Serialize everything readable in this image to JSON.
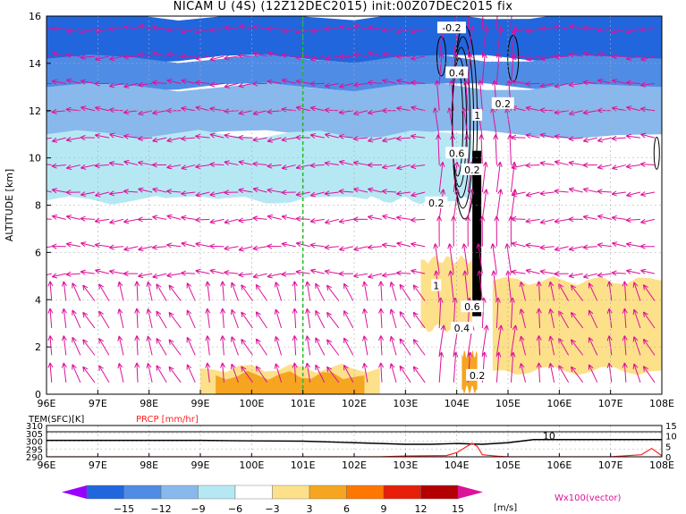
{
  "title": "NICAM U (4S) (12Z12DEC2015) init:00Z07DEC2015 fix",
  "chart_data": [
    {
      "type": "heatmap",
      "ylabel": "ALTITUDE [km]",
      "x_ticks": [
        "96E",
        "97E",
        "98E",
        "99E",
        "100E",
        "101E",
        "102E",
        "103E",
        "104E",
        "105E",
        "106E",
        "107E",
        "108E"
      ],
      "x_range": [
        96,
        108
      ],
      "y_ticks": [
        "0",
        "2",
        "4",
        "6",
        "8",
        "10",
        "12",
        "14",
        "16"
      ],
      "y_range": [
        0,
        16
      ],
      "grid": true,
      "marker_line_lon": 101,
      "contour_labels": [
        "-0.2",
        "0.4",
        "0.2",
        "1",
        "0.6",
        "0.2",
        "0.2",
        "1",
        "0.6",
        "0.4",
        "0.2"
      ],
      "field_regions": [
        {
          "lon": [
            96,
            108
          ],
          "alt": [
            14.2,
            16
          ],
          "value": -15
        },
        {
          "lon": [
            96,
            108
          ],
          "alt": [
            13.0,
            14.2
          ],
          "value": -12
        },
        {
          "lon": [
            96,
            108
          ],
          "alt": [
            11.0,
            13.0
          ],
          "value": -9
        },
        {
          "lon": [
            96,
            104.3
          ],
          "alt": [
            8.2,
            11.0
          ],
          "value": -6
        },
        {
          "lon": [
            96,
            102.0
          ],
          "alt": [
            5.0,
            8.2
          ],
          "value": -3
        },
        {
          "lon": [
            102.0,
            104.3
          ],
          "alt": [
            6.5,
            8.2
          ],
          "value": -3
        },
        {
          "lon": [
            103.3,
            104.3
          ],
          "alt": [
            2.8,
            5.7
          ],
          "value": 3
        },
        {
          "lon": [
            104.7,
            108
          ],
          "alt": [
            1.0,
            4.8
          ],
          "value": 3
        },
        {
          "lon": [
            99.0,
            102.5
          ],
          "alt": [
            0,
            1.1
          ],
          "value": 3
        },
        {
          "lon": [
            99.3,
            102.2
          ],
          "alt": [
            0,
            0.8
          ],
          "value": 6
        },
        {
          "lon": [
            104.1,
            104.4
          ],
          "alt": [
            0.2,
            1.7
          ],
          "value": 6
        }
      ],
      "convective_core": {
        "lon": [
          104.2,
          104.6
        ],
        "alt": [
          0,
          16
        ]
      }
    },
    {
      "type": "line",
      "legend": [
        "TEM(SFC)[K]",
        "PRCP [mm/hr]"
      ],
      "series_colors": [
        "#000000",
        "#ff2020"
      ],
      "x_ticks": [
        "96E",
        "97E",
        "98E",
        "99E",
        "100E",
        "101E",
        "102E",
        "103E",
        "104E",
        "105E",
        "106E",
        "107E",
        "108E"
      ],
      "y_left_ticks": [
        "310",
        "305",
        "300",
        "295",
        "290"
      ],
      "y_left_range": [
        290,
        310
      ],
      "y_right_ticks": [
        "15",
        "10",
        "5",
        "0"
      ],
      "y_right_range": [
        0,
        15
      ],
      "right_label": "10",
      "series": [
        {
          "name": "TEM(SFC)[K]",
          "x": [
            96,
            97,
            98,
            99,
            100,
            101,
            102,
            103,
            103.5,
            104,
            104.5,
            105,
            105.5,
            106,
            107,
            107.5,
            108
          ],
          "values": [
            300.5,
            300.5,
            300.5,
            300.5,
            300.2,
            300.0,
            299.0,
            298.0,
            298.0,
            298.5,
            298.0,
            299.0,
            301.0,
            301.0,
            301.0,
            301.0,
            301.0
          ]
        },
        {
          "name": "PRCP [mm/hr]",
          "x": [
            96,
            99,
            102.5,
            103,
            103.8,
            104,
            104.3,
            104.4,
            104.5,
            104.8,
            105,
            105.5,
            106,
            107,
            107.6,
            107.8,
            108
          ],
          "values": [
            0,
            0,
            0,
            0.4,
            0.6,
            2.0,
            6.5,
            5.0,
            1.0,
            0.3,
            0,
            0,
            0,
            0,
            1,
            4,
            0.5
          ]
        }
      ]
    }
  ],
  "colorbar": {
    "ticks": [
      "-15",
      "-12",
      "-9",
      "-6",
      "-3",
      "3",
      "6",
      "9",
      "12",
      "15"
    ],
    "unit": "[m/s]",
    "colors": [
      "#9900ff",
      "#2266dd",
      "#4f8ce6",
      "#89b8ec",
      "#b6e8f4",
      "#ffffff",
      "#fde08a",
      "#f5a520",
      "#ff7700",
      "#e61e0a",
      "#b30000",
      "#dd1199"
    ]
  },
  "vector_note": "Wx100(vector)"
}
